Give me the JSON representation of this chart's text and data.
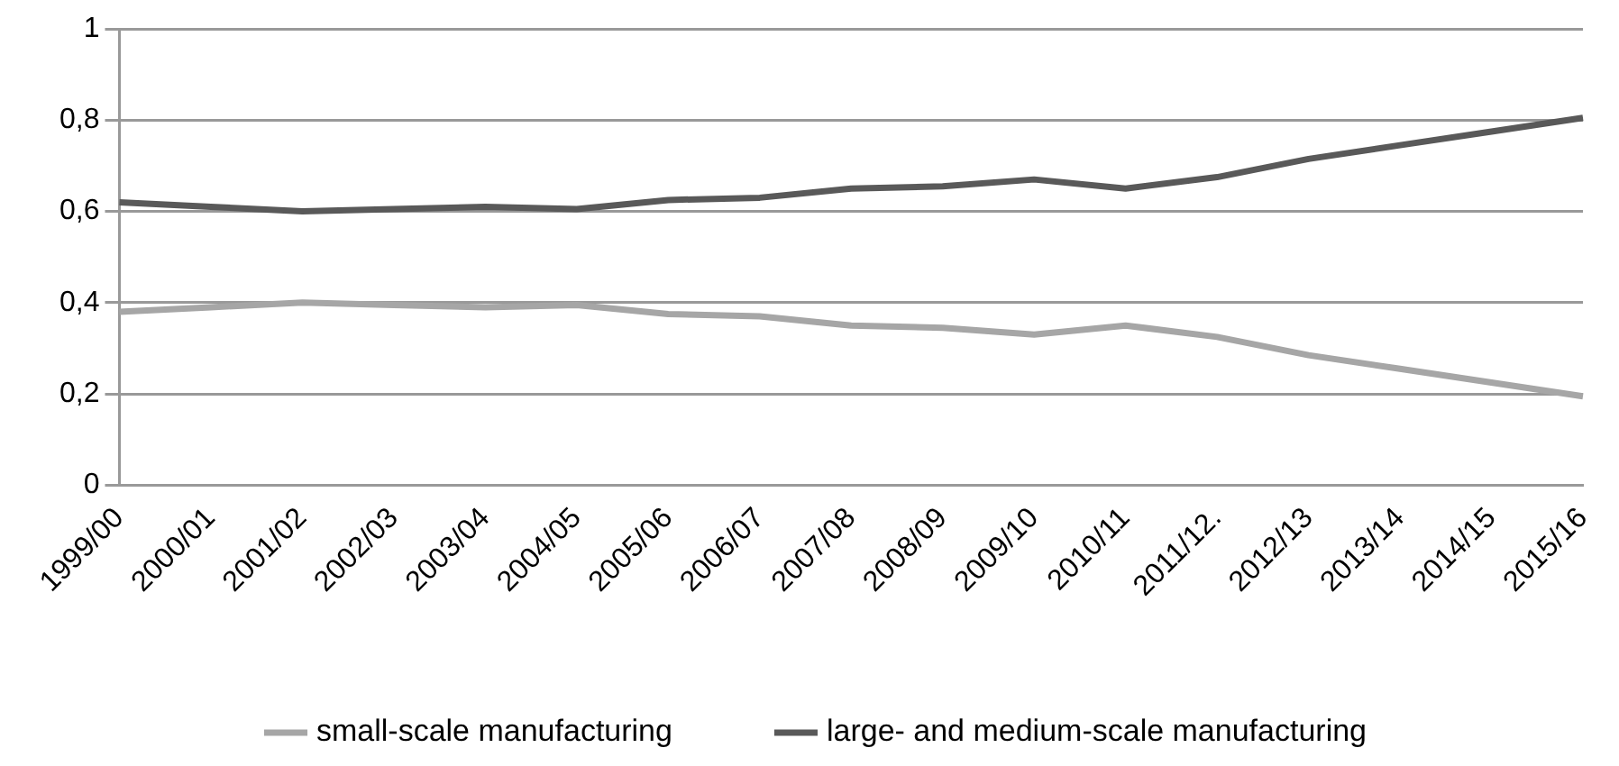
{
  "chart_data": {
    "type": "line",
    "categories": [
      "1999/00",
      "2000/01",
      "2001/02",
      "2002/03",
      "2003/04",
      "2004/05",
      "2005/06",
      "2006/07",
      "2007/08",
      "2008/09",
      "2009/10",
      "2010/11",
      "2011/12.",
      "2012/13",
      "2013/14",
      "2014/15",
      "2015/16"
    ],
    "series": [
      {
        "name": "small-scale manufacturing",
        "color": "#a6a6a6",
        "values": [
          0.38,
          0.39,
          0.4,
          0.395,
          0.39,
          0.395,
          0.375,
          0.37,
          0.35,
          0.345,
          0.33,
          0.35,
          0.325,
          0.285,
          0.255,
          0.225,
          0.195
        ]
      },
      {
        "name": "large- and medium-scale manufacturing",
        "color": "#595959",
        "values": [
          0.62,
          0.61,
          0.6,
          0.605,
          0.61,
          0.605,
          0.625,
          0.63,
          0.65,
          0.655,
          0.67,
          0.65,
          0.675,
          0.715,
          0.745,
          0.775,
          0.805
        ]
      }
    ],
    "ylim": [
      0,
      1
    ],
    "yticks": [
      0,
      {
        "value": 0.2,
        "label": "0,2"
      },
      {
        "value": 0.4,
        "label": "0,4"
      },
      {
        "value": 0.6,
        "label": "0,6"
      },
      {
        "value": 0.8,
        "label": "0,8"
      },
      1
    ],
    "grid": "y",
    "legend": "bottom",
    "marker": "none",
    "line_style": "solid"
  }
}
